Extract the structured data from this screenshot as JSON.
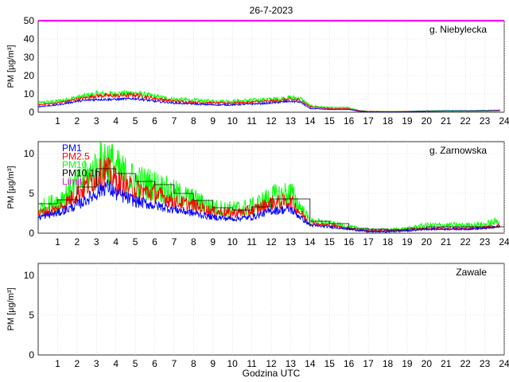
{
  "title": "26-7-2023",
  "xlabel": "Godzina UTC",
  "ylabel": "PM [µg/m³]",
  "x_ticks": [
    1,
    2,
    3,
    4,
    5,
    6,
    7,
    8,
    9,
    10,
    11,
    12,
    13,
    14,
    15,
    16,
    17,
    18,
    19,
    20,
    21,
    22,
    23,
    24
  ],
  "colors": {
    "pm1": "#0000ff",
    "pm25": "#ff0000",
    "pm10": "#00ff00",
    "hourly": "#000000",
    "limit": "#ff00ff"
  },
  "chart_data": [
    {
      "type": "line",
      "station": "g. Niebylecka",
      "xlim": [
        0,
        24
      ],
      "ylim": [
        0,
        50
      ],
      "y_ticks": [
        0,
        10,
        20,
        30,
        40,
        50
      ],
      "limit_value": 50,
      "series": [
        {
          "name": "PM1",
          "key": "pm1",
          "x": [
            0,
            1,
            2,
            3,
            4,
            5,
            6,
            7,
            8,
            9,
            10,
            11,
            12,
            13,
            13.5,
            14,
            15,
            16,
            16.5,
            17,
            18,
            19,
            20,
            21,
            22,
            23,
            23.8
          ],
          "values": [
            3,
            4,
            6,
            7,
            7,
            7.5,
            6,
            5,
            4.5,
            4,
            4,
            4.5,
            5,
            6,
            5.5,
            2,
            1.5,
            1.5,
            0.5,
            0.3,
            0.2,
            0.3,
            0.5,
            0.6,
            0.6,
            0.7,
            0.8
          ]
        },
        {
          "name": "PM2.5",
          "key": "pm25",
          "x": [
            0,
            1,
            2,
            3,
            4,
            5,
            6,
            7,
            8,
            9,
            10,
            11,
            12,
            13,
            13.5,
            14,
            15,
            16,
            16.5,
            17,
            18,
            19,
            20,
            21,
            22,
            23,
            23.8
          ],
          "values": [
            4,
            5,
            7,
            9,
            9,
            9.5,
            7.5,
            6,
            5.5,
            5,
            5,
            5.5,
            6,
            7,
            6.5,
            3,
            2,
            2,
            0.8,
            0.4,
            0.3,
            0.4,
            0.6,
            0.7,
            0.7,
            0.8,
            1
          ]
        },
        {
          "name": "PM10",
          "key": "pm10",
          "x": [
            0,
            1,
            2,
            3,
            4,
            5,
            6,
            7,
            8,
            9,
            10,
            11,
            12,
            13,
            13.5,
            14,
            15,
            16,
            16.5,
            17,
            18,
            19,
            20,
            21,
            22,
            23,
            23.8
          ],
          "values": [
            5,
            6,
            8,
            10,
            10,
            10.5,
            8.5,
            7,
            6.5,
            6,
            6,
            6.5,
            7,
            8,
            7.5,
            3.5,
            2.5,
            2.5,
            1,
            0.5,
            0.4,
            0.5,
            0.8,
            0.9,
            0.9,
            1,
            1.2
          ]
        }
      ]
    },
    {
      "type": "line",
      "station": "g. Zarnowska",
      "xlim": [
        0,
        24
      ],
      "ylim": [
        0,
        11.5
      ],
      "y_ticks": [
        0,
        5,
        10
      ],
      "legend": [
        "PM1",
        "PM2.5",
        "PM10",
        "PM10 1h",
        "Limit"
      ],
      "series": [
        {
          "name": "PM1",
          "key": "pm1",
          "x": [
            0,
            1,
            2,
            3,
            3.5,
            4,
            5,
            6,
            7,
            8,
            9,
            10,
            11,
            12,
            13,
            14,
            15,
            16,
            17,
            18,
            19,
            20,
            21,
            22,
            23,
            23.8
          ],
          "values": [
            2,
            2.5,
            3.5,
            5,
            6,
            5,
            4,
            3.5,
            3,
            2.5,
            2,
            1.8,
            2,
            2.8,
            3,
            1,
            0.8,
            0.5,
            0.2,
            0.2,
            0.3,
            0.5,
            0.5,
            0.5,
            0.6,
            0.8
          ]
        },
        {
          "name": "PM2.5",
          "key": "pm25",
          "x": [
            0,
            1,
            2,
            3,
            3.5,
            4,
            5,
            6,
            7,
            8,
            9,
            10,
            11,
            12,
            13,
            14,
            15,
            16,
            17,
            18,
            19,
            20,
            21,
            22,
            23,
            23.8
          ],
          "values": [
            2.5,
            3,
            5,
            7,
            8,
            6.5,
            5.5,
            5,
            4,
            3.5,
            2.7,
            2.5,
            2.8,
            3.8,
            4,
            1.2,
            1,
            0.6,
            0.3,
            0.3,
            0.4,
            0.6,
            0.6,
            0.6,
            0.7,
            1
          ]
        },
        {
          "name": "PM10",
          "key": "pm10",
          "x": [
            0,
            1,
            2,
            3,
            3.5,
            4,
            5,
            6,
            7,
            8,
            9,
            10,
            11,
            12,
            13,
            14,
            15,
            16,
            17,
            18,
            19,
            20,
            21,
            22,
            23,
            23.8
          ],
          "values": [
            3,
            4,
            6,
            8,
            9.5,
            8,
            6.5,
            6,
            5,
            4.2,
            3.2,
            3,
            3.3,
            4.5,
            5,
            1.5,
            1.2,
            0.8,
            0.4,
            0.4,
            0.6,
            1,
            1,
            1,
            1.1,
            1.6
          ]
        },
        {
          "name": "PM10 1h",
          "key": "hourly",
          "step": true,
          "x": [
            0,
            1,
            2,
            3,
            4,
            5,
            6,
            7,
            8,
            9,
            10,
            11,
            12,
            13,
            14,
            15,
            16,
            17,
            18,
            19,
            20,
            21,
            22,
            23,
            24
          ],
          "values": [
            3.7,
            4.2,
            5.8,
            8.1,
            7.5,
            6.5,
            6.1,
            5,
            4.1,
            3.2,
            2.9,
            3.3,
            4.3,
            4.3,
            1.5,
            1.2,
            0.6,
            0.5,
            0.4,
            0.6,
            0.8,
            0.8,
            0.8,
            0.8,
            0.8
          ]
        }
      ]
    },
    {
      "type": "line",
      "station": "Zawale",
      "xlim": [
        0,
        24
      ],
      "ylim": [
        0,
        11.5
      ],
      "y_ticks": [
        0,
        5,
        10
      ],
      "series": []
    }
  ]
}
